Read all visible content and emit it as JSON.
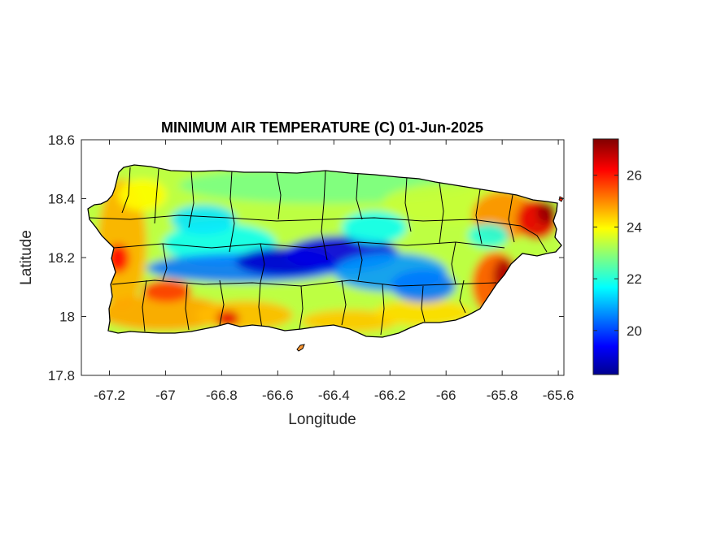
{
  "figure": {
    "title": "MINIMUM AIR TEMPERATURE (C) 01-Jun-2025",
    "xlabel": "Longitude",
    "ylabel": "Latitude"
  },
  "axes": {
    "xlim": [
      -67.3,
      -65.58
    ],
    "ylim": [
      17.8,
      18.6
    ],
    "xticks": [
      -67.2,
      -67,
      -66.8,
      -66.6,
      -66.4,
      -66.2,
      -66,
      -65.8,
      -65.6
    ],
    "xtick_labels": [
      "-67.2",
      "-67",
      "-66.8",
      "-66.6",
      "-66.4",
      "-66.2",
      "-66",
      "-65.8",
      "-65.6"
    ],
    "yticks": [
      17.8,
      18,
      18.2,
      18.4,
      18.6
    ],
    "ytick_labels": [
      "17.8",
      "18",
      "18.2",
      "18.4",
      "18.6"
    ]
  },
  "colorbar": {
    "colormap": "jet",
    "range": [
      18.3,
      27.4
    ],
    "ticks": [
      20,
      22,
      24,
      26
    ],
    "tick_labels": [
      "20",
      "22",
      "24",
      "26"
    ]
  },
  "chart_data": {
    "type": "heatmap",
    "region": "Puerto Rico",
    "variable": "Minimum air temperature",
    "units": "C",
    "date": "01-Jun-2025",
    "value_range": [
      18.3,
      27.4
    ],
    "patterns": [
      {
        "area": "central mountain ridge (Cordillera Central, lon -66.9 to -66.35, lat ~18.17)",
        "value": 19.0
      },
      {
        "area": "east-central interior (lon -66.3 to -66.1, lat ~18.15)",
        "value": 21.0
      },
      {
        "area": "north coast and northern interior",
        "value": 23.0
      },
      {
        "area": "west coast (lon ~-67.15)",
        "value": 24.5
      },
      {
        "area": "south coast (lat ~17.97)",
        "value": 24.5
      },
      {
        "area": "southeast coast (lon ~-65.85, lat ~18.05)",
        "value": 26.0
      },
      {
        "area": "northeast tip (lon ~-65.65, lat ~18.35)",
        "value": 27.0
      },
      {
        "area": "southwest corner (lon ~-66.77, lat ~17.98)",
        "value": 26.5
      }
    ]
  }
}
